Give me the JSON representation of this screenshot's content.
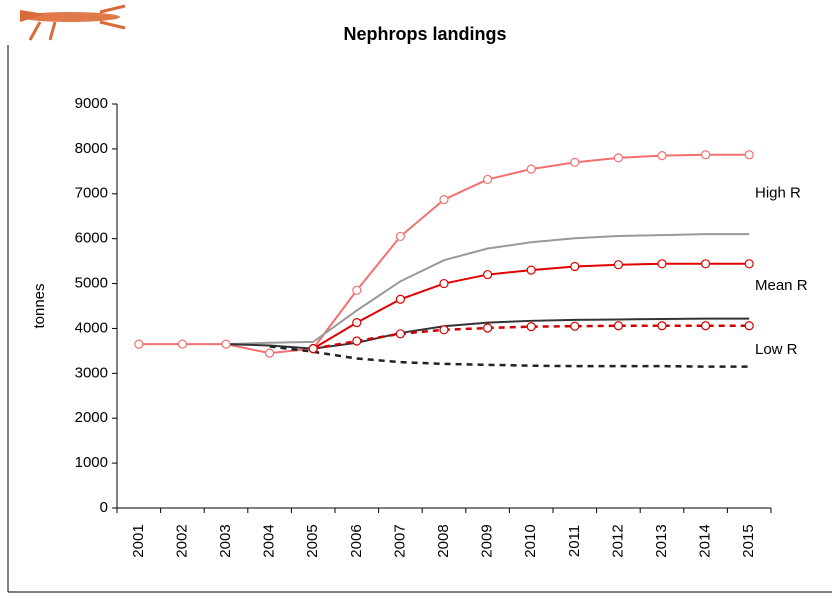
{
  "chart_data": {
    "type": "line",
    "title": "Nephrops landings",
    "y_label": "tonnes",
    "categories": [
      "2001",
      "2002",
      "2003",
      "2004",
      "2005",
      "2006",
      "2007",
      "2008",
      "2009",
      "2010",
      "2011",
      "2012",
      "2013",
      "2014",
      "2015"
    ],
    "ylim": [
      0,
      9000
    ],
    "yticks": [
      0,
      1000,
      2000,
      3000,
      4000,
      5000,
      6000,
      7000,
      8000,
      9000
    ],
    "series": [
      {
        "color": "#f27070",
        "dash": false,
        "markers": true,
        "values": [
          3650,
          3650,
          3650,
          3450,
          3550,
          4850,
          6050,
          6870,
          7320,
          7550,
          7700,
          7800,
          7850,
          7870,
          7870
        ]
      },
      {
        "color": "#999999",
        "dash": false,
        "markers": false,
        "values": [
          null,
          null,
          3650,
          3680,
          3700,
          4400,
          5050,
          5520,
          5780,
          5920,
          6010,
          6060,
          6080,
          6100,
          6100
        ]
      },
      {
        "color": "#e00000",
        "dash": false,
        "markers": true,
        "values": [
          null,
          null,
          null,
          null,
          3550,
          4130,
          4650,
          5000,
          5200,
          5300,
          5380,
          5420,
          5440,
          5440,
          5440
        ]
      },
      {
        "color": "#333333",
        "dash": false,
        "markers": false,
        "values": [
          null,
          null,
          3650,
          3620,
          3550,
          3680,
          3900,
          4050,
          4130,
          4170,
          4190,
          4200,
          4210,
          4220,
          4220
        ]
      },
      {
        "color": "#d00000",
        "dash": true,
        "markers": true,
        "values": [
          null,
          null,
          null,
          null,
          3550,
          3720,
          3880,
          3970,
          4010,
          4040,
          4050,
          4060,
          4060,
          4060,
          4060
        ]
      },
      {
        "color": "#222222",
        "dash": true,
        "markers": false,
        "values": [
          null,
          null,
          null,
          3600,
          3480,
          3330,
          3250,
          3210,
          3190,
          3170,
          3160,
          3160,
          3160,
          3150,
          3150
        ]
      }
    ],
    "annotations": [
      {
        "text": "High R",
        "value": 7000
      },
      {
        "text": "Mean R",
        "value": 4950
      },
      {
        "text": "Low R",
        "value": 3520
      }
    ]
  }
}
